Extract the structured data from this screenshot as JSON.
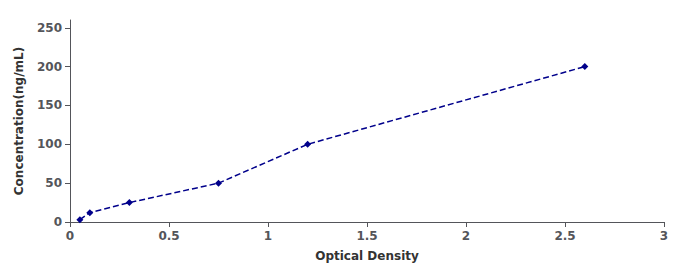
{
  "chart_data": {
    "type": "line",
    "x": [
      0.05,
      0.1,
      0.3,
      0.75,
      1.2,
      2.6
    ],
    "values": [
      3,
      12,
      25,
      50,
      100,
      200
    ],
    "color": "#00008B",
    "marker": "diamond",
    "line_style": "dashed",
    "xlabel": "Optical Density",
    "ylabel": "Concentration(ng/mL)",
    "xlim": [
      0,
      3
    ],
    "ylim": [
      0,
      260
    ],
    "xticks": [
      0,
      0.5,
      1,
      1.5,
      2,
      2.5,
      3
    ],
    "yticks": [
      0,
      50,
      100,
      150,
      200,
      250
    ],
    "grid": false
  }
}
